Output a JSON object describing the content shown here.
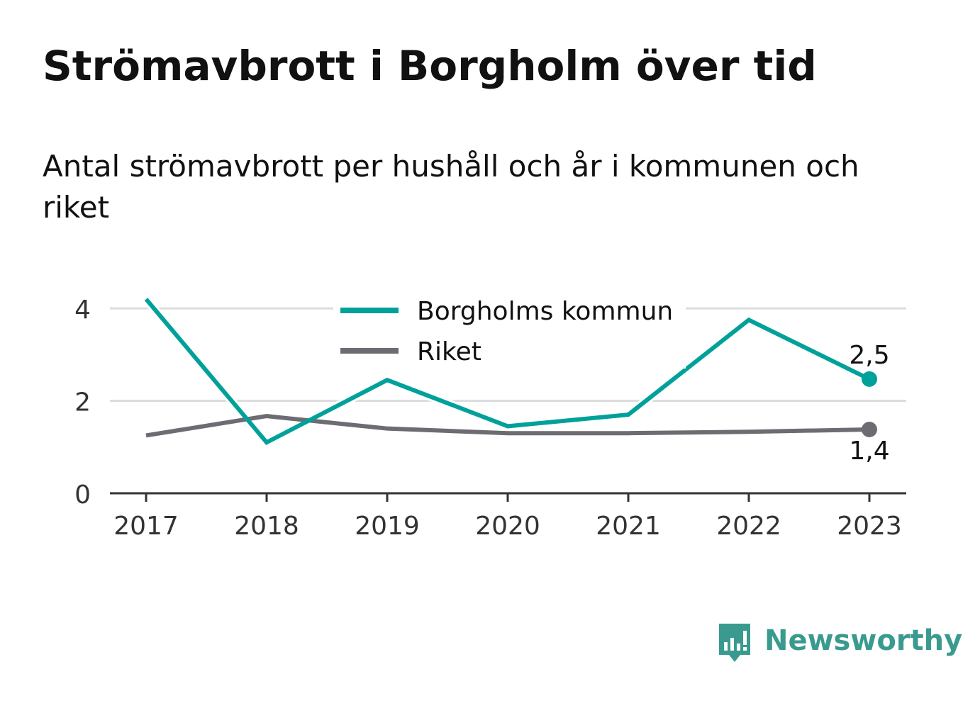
{
  "title": "Strömavbrott i Borgholm över tid",
  "subtitle": "Antal strömavbrott per hushåll och år i kommunen och riket",
  "brand": {
    "name": "Newsworthy",
    "color": "#3a9a8f"
  },
  "colors": {
    "borgholm": "#00a19a",
    "riket": "#6d6c72",
    "grid": "#dddddd",
    "axis": "#333333",
    "text": "#333333"
  },
  "chart_data": {
    "type": "line",
    "x": [
      "2017",
      "2018",
      "2019",
      "2020",
      "2021",
      "2022",
      "2023"
    ],
    "ylim": [
      0,
      4.4
    ],
    "yticks": [
      0,
      2,
      4
    ],
    "grid": true,
    "legend_position": "top-center",
    "series": [
      {
        "name": "Borgholms kommun",
        "color": "#00a19a",
        "values": [
          4.2,
          1.1,
          2.45,
          1.45,
          1.7,
          3.75,
          2.47
        ],
        "end_label": "2,5"
      },
      {
        "name": "Riket",
        "color": "#6d6c72",
        "values": [
          1.25,
          1.67,
          1.4,
          1.3,
          1.3,
          1.33,
          1.38
        ],
        "end_label": "1,4"
      }
    ]
  }
}
